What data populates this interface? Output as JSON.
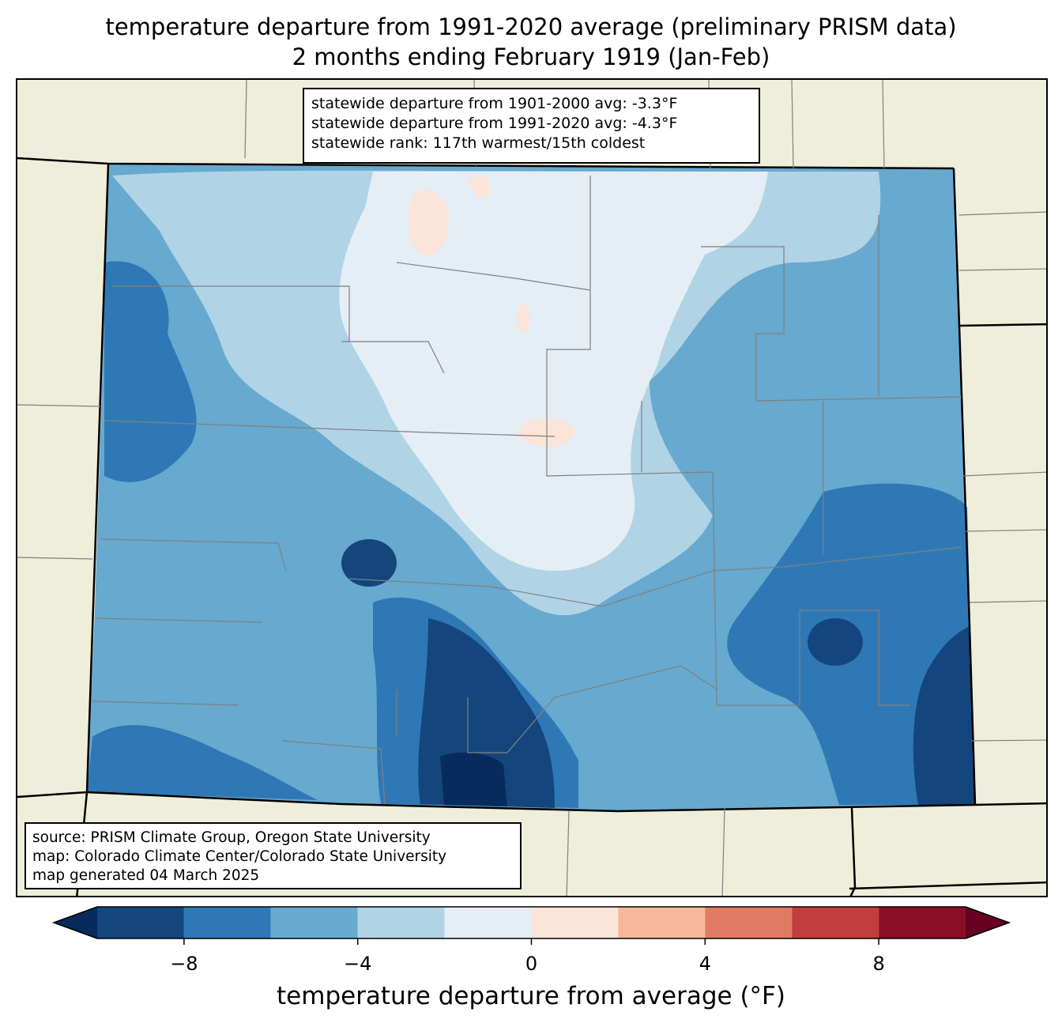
{
  "title": {
    "line1": "temperature departure from 1991-2020 average (preliminary PRISM data)",
    "line2": "2 months ending February 1919 (Jan-Feb)"
  },
  "stats": {
    "line1": "statewide departure from 1901-2000 avg: -3.3°F",
    "line2": "statewide departure from 1991-2020 avg: -4.3°F",
    "line3": "statewide rank: 117th warmest/15th coldest"
  },
  "source": {
    "line1": "source: PRISM Climate Group, Oregon State University",
    "line2": "map: Colorado Climate Center/Colorado State University",
    "line3": "map generated 04 March 2025"
  },
  "colorbar": {
    "label": "temperature departure from average (°F)",
    "min": -10,
    "max": 10,
    "step": 2,
    "ticks": [
      {
        "value": -8,
        "label": "−8"
      },
      {
        "value": -4,
        "label": "−4"
      },
      {
        "value": 0,
        "label": "0"
      },
      {
        "value": 4,
        "label": "4"
      },
      {
        "value": 8,
        "label": "8"
      }
    ],
    "colors": [
      "#14467d",
      "#2f78b6",
      "#67a9cf",
      "#b0d3e6",
      "#e5edf5",
      "#fbe4d8",
      "#f6b79b",
      "#e07b63",
      "#c13e3c",
      "#8a0f26"
    ],
    "under_color": "#062b5c",
    "over_color": "#670021"
  }
}
